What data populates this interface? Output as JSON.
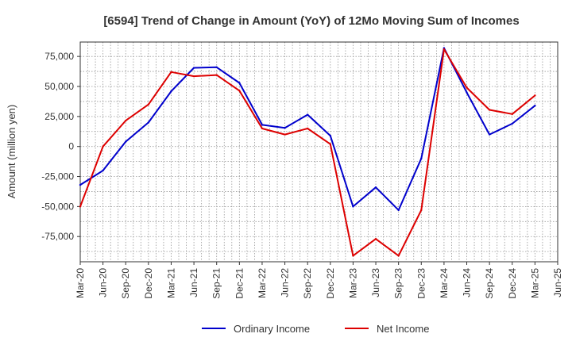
{
  "chart_data": {
    "type": "line",
    "title": "[6594]  Trend of Change in Amount (YoY) of 12Mo Moving Sum of Incomes",
    "xlabel": "",
    "ylabel": "Amount (million yen)",
    "ylim": [
      -96000,
      87000
    ],
    "y_ticks": [
      75000,
      50000,
      25000,
      0,
      -25000,
      -50000,
      -75000
    ],
    "y_tick_labels": [
      "75,000",
      "50,000",
      "25,000",
      "0",
      "-25,000",
      "-50,000",
      "-75,000"
    ],
    "x_tick_labels": [
      "Mar-20",
      "Jun-20",
      "Sep-20",
      "Dec-20",
      "Mar-21",
      "Jun-21",
      "Sep-21",
      "Dec-21",
      "Mar-22",
      "Jun-22",
      "Sep-22",
      "Dec-22",
      "Mar-23",
      "Jun-23",
      "Sep-23",
      "Dec-23",
      "Mar-24",
      "Jun-24",
      "Sep-24",
      "Dec-24",
      "Mar-25",
      "Jun-25"
    ],
    "categories": [
      "Mar-20",
      "Jun-20",
      "Sep-20",
      "Dec-20",
      "Mar-21",
      "Jun-21",
      "Sep-21",
      "Dec-21",
      "Mar-22",
      "Jun-22",
      "Sep-22",
      "Dec-22",
      "Mar-23",
      "Jun-23",
      "Sep-23",
      "Dec-23",
      "Mar-24",
      "Jun-24",
      "Sep-24",
      "Dec-24",
      "Mar-25"
    ],
    "grid": true,
    "legend_position": "bottom",
    "series": [
      {
        "name": "Ordinary Income",
        "color": "#0000cc",
        "values": [
          -32000,
          -20000,
          4000,
          20000,
          46000,
          65500,
          66000,
          53000,
          18000,
          15500,
          26500,
          9000,
          -50000,
          -34000,
          -53000,
          -10000,
          82000,
          45000,
          10000,
          19000,
          34000
        ]
      },
      {
        "name": "Net Income",
        "color": "#dd0000",
        "values": [
          -50000,
          0,
          21500,
          35000,
          62000,
          58500,
          59500,
          46500,
          15000,
          10000,
          15000,
          2000,
          -91000,
          -77000,
          -91000,
          -53000,
          81000,
          49000,
          30500,
          27000,
          42500
        ]
      }
    ]
  }
}
